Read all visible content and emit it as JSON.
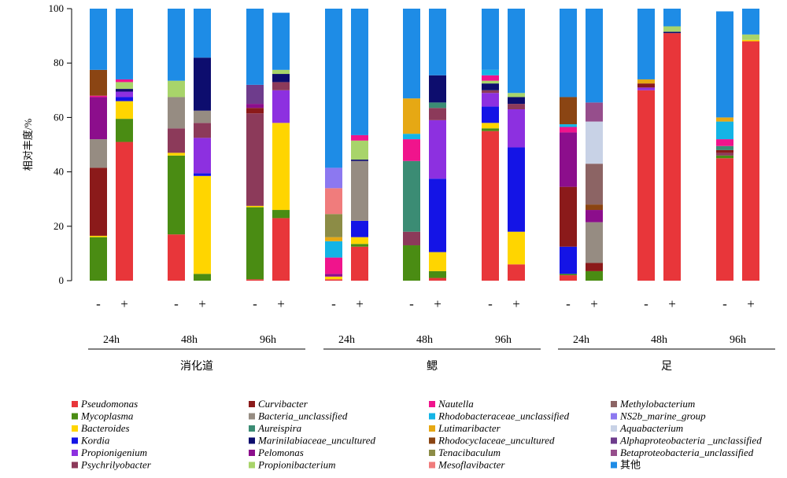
{
  "chart_data": {
    "type": "bar",
    "stacked": true,
    "ylabel": "相对丰度/%",
    "ylim": [
      0,
      100
    ],
    "yticks": [
      0,
      20,
      40,
      60,
      80,
      100
    ],
    "bars": [
      {
        "sign": "-",
        "time": "24h",
        "group": "消化道"
      },
      {
        "sign": "+",
        "time": "24h",
        "group": "消化道"
      },
      {
        "sign": "-",
        "time": "48h",
        "group": "消化道"
      },
      {
        "sign": "+",
        "time": "48h",
        "group": "消化道"
      },
      {
        "sign": "-",
        "time": "96h",
        "group": "消化道"
      },
      {
        "sign": "+",
        "time": "96h",
        "group": "消化道"
      },
      {
        "sign": "-",
        "time": "24h",
        "group": "鳃"
      },
      {
        "sign": "+",
        "time": "24h",
        "group": "鳃"
      },
      {
        "sign": "-",
        "time": "48h",
        "group": "鳃"
      },
      {
        "sign": "+",
        "time": "48h",
        "group": "鳃"
      },
      {
        "sign": "-",
        "time": "96h",
        "group": "鳃"
      },
      {
        "sign": "+",
        "time": "96h",
        "group": "鳃"
      },
      {
        "sign": "-",
        "time": "24h",
        "group": "足"
      },
      {
        "sign": "+",
        "time": "24h",
        "group": "足"
      },
      {
        "sign": "-",
        "time": "48h",
        "group": "足"
      },
      {
        "sign": "+",
        "time": "48h",
        "group": "足"
      },
      {
        "sign": "-",
        "time": "96h",
        "group": "足"
      },
      {
        "sign": "+",
        "time": "96h",
        "group": "足"
      }
    ],
    "time_labels": [
      {
        "label": "24h",
        "bars": [
          0,
          1
        ]
      },
      {
        "label": "48h",
        "bars": [
          2,
          3
        ]
      },
      {
        "label": "96h",
        "bars": [
          4,
          5
        ]
      },
      {
        "label": "24h",
        "bars": [
          6,
          7
        ]
      },
      {
        "label": "48h",
        "bars": [
          8,
          9
        ]
      },
      {
        "label": "96h",
        "bars": [
          10,
          11
        ]
      },
      {
        "label": "24h",
        "bars": [
          12,
          13
        ]
      },
      {
        "label": "48h",
        "bars": [
          14,
          15
        ]
      },
      {
        "label": "96h",
        "bars": [
          16,
          17
        ]
      }
    ],
    "groups": [
      {
        "label": "消化道",
        "bars": [
          0,
          5
        ]
      },
      {
        "label": "鳃",
        "bars": [
          6,
          11
        ]
      },
      {
        "label": "足",
        "bars": [
          12,
          17
        ]
      }
    ],
    "legend_position": "bottom",
    "series": [
      {
        "name": "Pseudomonas",
        "color": "#e8363a",
        "values": [
          0,
          51,
          17,
          0,
          0.5,
          23,
          0.5,
          12.5,
          0,
          1,
          55,
          6,
          2,
          0,
          70,
          91,
          45,
          88
        ]
      },
      {
        "name": "Mycoplasma",
        "color": "#4a8c13",
        "values": [
          16,
          8.5,
          29,
          2.5,
          26.5,
          3,
          0,
          1,
          13,
          2.5,
          1,
          0,
          0.5,
          3.5,
          0,
          0,
          1,
          0
        ]
      },
      {
        "name": "Bacteroides",
        "color": "#ffd500",
        "values": [
          0.5,
          6.5,
          1,
          36,
          0.5,
          32,
          1,
          2.5,
          0,
          7,
          2,
          12,
          0,
          0,
          0,
          0,
          0,
          0.5
        ]
      },
      {
        "name": "Kordia",
        "color": "#1414e6",
        "values": [
          0,
          1.5,
          0,
          1,
          0,
          0,
          0,
          6,
          0,
          27,
          6,
          31,
          10,
          0,
          0,
          0,
          0,
          0
        ]
      },
      {
        "name": "Propionigenium",
        "color": "#8d30e0",
        "values": [
          0,
          2,
          0,
          13,
          0,
          12,
          0,
          0,
          0,
          21.5,
          5,
          14,
          0,
          0,
          1,
          0,
          0,
          0
        ]
      },
      {
        "name": "Psychrilyobacter",
        "color": "#8c3a5a",
        "values": [
          0,
          0,
          9,
          5.5,
          34,
          3,
          0,
          0,
          5,
          4.5,
          1,
          2,
          0,
          0,
          0,
          0,
          1,
          0
        ]
      },
      {
        "name": "Curvibacter",
        "color": "#8b1a1a",
        "values": [
          25,
          0,
          0,
          0,
          2,
          0,
          0,
          0,
          0,
          0,
          0,
          0,
          22,
          3,
          1.5,
          0,
          1,
          0
        ]
      },
      {
        "name": "Bacteria_unclassified",
        "color": "#968c82",
        "values": [
          10.5,
          0,
          11.5,
          4.5,
          0,
          0,
          0,
          22,
          0,
          0,
          0,
          0,
          0,
          15,
          0,
          0,
          0,
          0
        ]
      },
      {
        "name": "Aureispira",
        "color": "#3b8c74",
        "values": [
          0,
          0,
          0,
          0,
          0,
          0,
          0,
          0,
          26,
          2,
          0,
          0,
          0,
          0,
          0,
          0,
          1.5,
          0
        ]
      },
      {
        "name": "Marinilabiaceae_uncultured",
        "color": "#0d0d6e",
        "values": [
          0,
          1,
          0,
          19.5,
          0,
          3,
          0,
          0.5,
          0,
          10,
          2.5,
          2.5,
          0,
          0,
          0,
          0.5,
          0,
          0
        ]
      },
      {
        "name": "Pelomonas",
        "color": "#8c0e8c",
        "values": [
          15.5,
          0,
          0,
          0,
          1.5,
          0,
          1,
          0,
          0,
          0,
          0,
          0,
          20,
          4.5,
          0,
          0,
          0,
          0
        ]
      },
      {
        "name": "Propionibacterium",
        "color": "#a8d46a",
        "values": [
          0,
          2.5,
          6,
          0,
          0,
          1.5,
          0,
          7,
          0,
          0,
          1,
          1.5,
          0,
          0,
          0,
          2,
          0,
          2
        ]
      },
      {
        "name": "Nautella",
        "color": "#f0148c",
        "values": [
          0.5,
          1,
          0,
          0,
          0,
          0,
          6,
          2,
          8,
          0,
          2,
          0,
          2,
          0,
          0,
          0,
          2.5,
          0
        ]
      },
      {
        "name": "Rhodobacteraceae_unclassified",
        "color": "#14b4e6",
        "values": [
          0,
          0,
          0,
          0,
          0,
          0,
          6,
          0,
          2,
          0,
          2,
          0,
          1,
          0,
          0,
          0,
          6.5,
          0
        ]
      },
      {
        "name": "Lutimaribacter",
        "color": "#e6a814",
        "values": [
          0,
          0,
          0,
          0,
          0,
          0,
          1.5,
          0,
          13,
          0,
          0,
          0,
          0,
          0,
          1.5,
          0,
          1.5,
          0
        ]
      },
      {
        "name": "Rhodocyclaceae_uncultured",
        "color": "#8b4513",
        "values": [
          9.5,
          0,
          0,
          0,
          0,
          0,
          0,
          0,
          0,
          0,
          0,
          0,
          10,
          2,
          0,
          0,
          0,
          0
        ]
      },
      {
        "name": "Tenacibaculum",
        "color": "#8c8c46",
        "values": [
          0,
          0,
          0,
          0,
          0,
          0,
          8.5,
          0,
          0,
          0,
          0,
          0,
          0,
          0,
          0,
          0,
          0,
          0
        ]
      },
      {
        "name": "Mesoflavibacter",
        "color": "#f07c7c",
        "values": [
          0,
          0,
          0,
          0,
          0,
          0,
          9.5,
          0,
          0,
          0,
          0,
          0,
          0,
          0,
          0,
          0,
          0,
          0
        ]
      },
      {
        "name": "Methylobacterium",
        "color": "#8c6464",
        "values": [
          0,
          0,
          0,
          0,
          0,
          0,
          0,
          0,
          0,
          0,
          0,
          0,
          0,
          15,
          0,
          0,
          0,
          0
        ]
      },
      {
        "name": "NS2b_marine_group",
        "color": "#8c78f0",
        "values": [
          0,
          0,
          0,
          0,
          0,
          0,
          7.5,
          0,
          0,
          0,
          0,
          0,
          0,
          0,
          0,
          0,
          0,
          0
        ]
      },
      {
        "name": "Aquabacterium",
        "color": "#c8d2e6",
        "values": [
          0,
          0,
          0,
          0,
          0,
          0,
          0,
          0,
          0,
          0,
          0,
          0,
          0,
          15.5,
          0,
          0,
          0,
          0
        ]
      },
      {
        "name": "Alphaproteobacteria _unclassified",
        "color": "#6e3c8c",
        "values": [
          0,
          0,
          0,
          0,
          7,
          0,
          0,
          0,
          0,
          0,
          0,
          0,
          0,
          0,
          0,
          0,
          0,
          0
        ]
      },
      {
        "name": "Betaproteobacteria_unclassified",
        "color": "#964e8c",
        "values": [
          0,
          0,
          0,
          0,
          0,
          0,
          0,
          0,
          0,
          0,
          0,
          0,
          0,
          7,
          0,
          0,
          0,
          0
        ]
      },
      {
        "name": "其他",
        "color": "#1e8ce6",
        "values": [
          22.5,
          26,
          26.5,
          18,
          28,
          21,
          58.5,
          46.5,
          33,
          24.5,
          22.5,
          31,
          32.5,
          34.5,
          26,
          6.5,
          39,
          9.5
        ]
      }
    ]
  }
}
